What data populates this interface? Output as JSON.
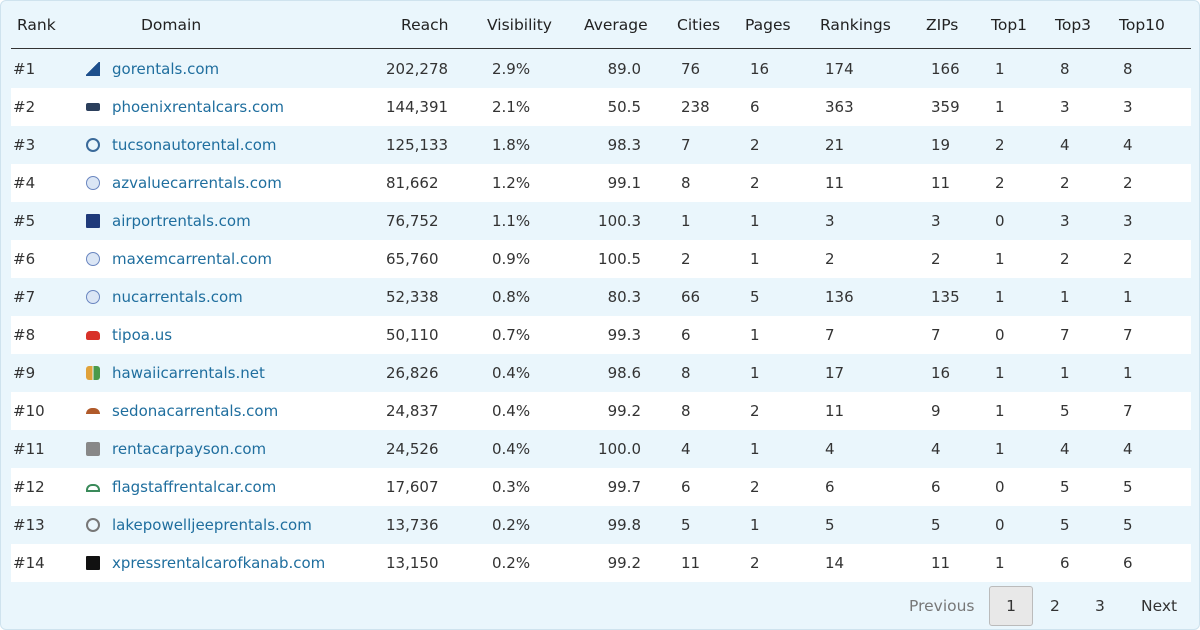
{
  "table": {
    "header": [
      "Rank",
      "Domain",
      "Reach",
      "Visibility",
      "Average",
      "Cities",
      "Pages",
      "Rankings",
      "ZIPs",
      "Top1",
      "Top3",
      "Top10"
    ],
    "rows": [
      [
        "#1",
        "gorentals.com",
        "202,278",
        "2.9%",
        "89.0",
        "76",
        "16",
        "174",
        "166",
        "1",
        "8",
        "8"
      ],
      [
        "#2",
        "phoenixrentalcars.com",
        "144,391",
        "2.1%",
        "50.5",
        "238",
        "6",
        "363",
        "359",
        "1",
        "3",
        "3"
      ],
      [
        "#3",
        "tucsonautorental.com",
        "125,133",
        "1.8%",
        "98.3",
        "7",
        "2",
        "21",
        "19",
        "2",
        "4",
        "4"
      ],
      [
        "#4",
        "azvaluecarrentals.com",
        "81,662",
        "1.2%",
        "99.1",
        "8",
        "2",
        "11",
        "11",
        "2",
        "2",
        "2"
      ],
      [
        "#5",
        "airportrentals.com",
        "76,752",
        "1.1%",
        "100.3",
        "1",
        "1",
        "3",
        "3",
        "0",
        "3",
        "3"
      ],
      [
        "#6",
        "maxemcarrental.com",
        "65,760",
        "0.9%",
        "100.5",
        "2",
        "1",
        "2",
        "2",
        "1",
        "2",
        "2"
      ],
      [
        "#7",
        "nucarrentals.com",
        "52,338",
        "0.8%",
        "80.3",
        "66",
        "5",
        "136",
        "135",
        "1",
        "1",
        "1"
      ],
      [
        "#8",
        "tipoa.us",
        "50,110",
        "0.7%",
        "99.3",
        "6",
        "1",
        "7",
        "7",
        "0",
        "7",
        "7"
      ],
      [
        "#9",
        "hawaiicarrentals.net",
        "26,826",
        "0.4%",
        "98.6",
        "8",
        "1",
        "17",
        "16",
        "1",
        "1",
        "1"
      ],
      [
        "#10",
        "sedonacarrentals.com",
        "24,837",
        "0.4%",
        "99.2",
        "8",
        "2",
        "11",
        "9",
        "1",
        "5",
        "7"
      ],
      [
        "#11",
        "rentacarpayson.com",
        "24,526",
        "0.4%",
        "100.0",
        "4",
        "1",
        "4",
        "4",
        "1",
        "4",
        "4"
      ],
      [
        "#12",
        "flagstaffrentalcar.com",
        "17,607",
        "0.3%",
        "99.7",
        "6",
        "2",
        "6",
        "6",
        "0",
        "5",
        "5"
      ],
      [
        "#13",
        "lakepowelljeeprentals.com",
        "13,736",
        "0.2%",
        "99.8",
        "5",
        "1",
        "5",
        "5",
        "0",
        "5",
        "5"
      ],
      [
        "#14",
        "xpressrentalcarofkanab.com",
        "13,150",
        "0.2%",
        "99.2",
        "11",
        "2",
        "14",
        "11",
        "1",
        "6",
        "6"
      ]
    ]
  },
  "pagination": {
    "previous": "Previous",
    "pages": [
      "1",
      "2",
      "3"
    ],
    "next": "Next"
  }
}
